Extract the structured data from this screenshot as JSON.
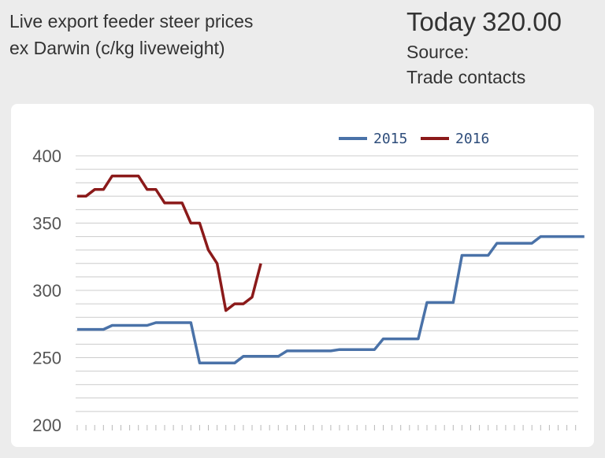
{
  "header": {
    "title_line1": "Live export feeder steer prices",
    "title_line2": "ex Darwin (c/kg liveweight)",
    "today_label": "Today",
    "today_value": "320.00",
    "source_label": "Source:",
    "source_value": "Trade contacts"
  },
  "colors": {
    "series_2015": "#4a72a8",
    "series_2016": "#8b1a1a",
    "grid": "#cccccc",
    "background": "#ececec",
    "plot_background": "#ffffff"
  },
  "chart_data": {
    "type": "line",
    "title": "Live export feeder steer prices ex Darwin (c/kg liveweight)",
    "xlabel": "",
    "ylabel": "",
    "ylim": [
      200,
      400
    ],
    "yticks": [
      200,
      250,
      300,
      350,
      400
    ],
    "grid": true,
    "legend_position": "top-right",
    "series": [
      {
        "name": "2015",
        "color": "#4a72a8",
        "values": [
          271,
          271,
          271,
          271,
          274,
          274,
          274,
          274,
          274,
          276,
          276,
          276,
          276,
          276,
          246,
          246,
          246,
          246,
          246,
          251,
          251,
          251,
          251,
          251,
          255,
          255,
          255,
          255,
          255,
          255,
          256,
          256,
          256,
          256,
          256,
          264,
          264,
          264,
          264,
          264,
          291,
          291,
          291,
          291,
          326,
          326,
          326,
          326,
          335,
          335,
          335,
          335,
          335,
          340,
          340,
          340,
          340,
          340,
          340
        ]
      },
      {
        "name": "2016",
        "color": "#8b1a1a",
        "values": [
          370,
          370,
          375,
          375,
          385,
          385,
          385,
          385,
          375,
          375,
          365,
          365,
          365,
          350,
          350,
          330,
          320,
          285,
          290,
          290,
          295,
          320
        ]
      }
    ]
  }
}
